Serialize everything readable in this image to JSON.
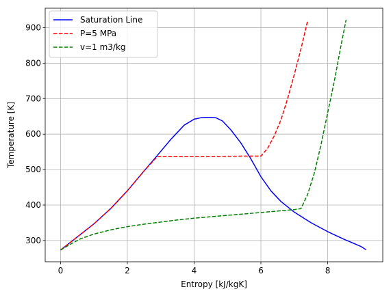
{
  "chart_data": {
    "type": "line",
    "title": "",
    "xlabel": "Entropy [kJ/kgK]",
    "ylabel": "Temperature [K]",
    "xlim": [
      -0.46,
      9.65
    ],
    "ylim": [
      240,
      955
    ],
    "xticks": [
      0,
      2,
      4,
      6,
      8
    ],
    "yticks": [
      300,
      400,
      500,
      600,
      700,
      800,
      900
    ],
    "grid": true,
    "legend_position": "top-left",
    "series": [
      {
        "name": "Saturation Line",
        "color": "#0000ff",
        "style": "solid",
        "x": [
          0,
          0.5,
          1.0,
          1.5,
          2.0,
          2.5,
          2.9,
          3.3,
          3.7,
          4.0,
          4.2,
          4.35,
          4.5,
          4.65,
          4.85,
          5.1,
          5.4,
          5.7,
          6.0,
          6.3,
          6.6,
          7.0,
          7.5,
          8.0,
          8.5,
          9.0,
          9.15
        ],
        "y": [
          273,
          310,
          347,
          390,
          440,
          496,
          540,
          585,
          625,
          642,
          646,
          647,
          647,
          646,
          637,
          612,
          575,
          530,
          480,
          440,
          410,
          380,
          350,
          325,
          303,
          283,
          274
        ]
      },
      {
        "name": "P=5 MPa",
        "color": "#ff0000",
        "style": "dashed",
        "x": [
          0,
          0.5,
          1.0,
          1.5,
          2.0,
          2.5,
          2.9,
          3.5,
          4.5,
          5.5,
          6.0,
          6.2,
          6.4,
          6.6,
          6.8,
          7.0,
          7.2,
          7.4
        ],
        "y": [
          273,
          310,
          347,
          390,
          440,
          496,
          537,
          537,
          537,
          538,
          538,
          560,
          595,
          640,
          700,
          768,
          840,
          920
        ]
      },
      {
        "name": "v=1 m3/kg",
        "color": "#008000",
        "style": "dashed",
        "x": [
          0,
          0.3,
          0.6,
          1.0,
          1.5,
          2.0,
          2.5,
          3.0,
          3.5,
          4.0,
          4.5,
          5.0,
          5.5,
          6.0,
          6.5,
          7.0,
          7.2,
          7.4,
          7.6,
          7.8,
          8.0,
          8.2,
          8.4,
          8.55
        ],
        "y": [
          273,
          290,
          305,
          318,
          330,
          339,
          346,
          352,
          358,
          363,
          367,
          371,
          375,
          379,
          383,
          387,
          390,
          430,
          490,
          570,
          660,
          750,
          850,
          922
        ]
      }
    ]
  }
}
